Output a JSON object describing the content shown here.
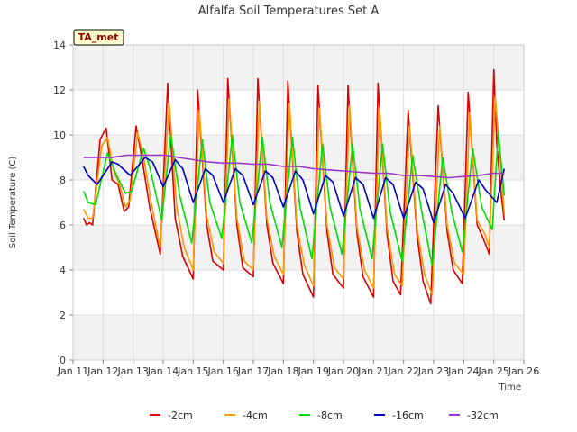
{
  "chart_data": {
    "type": "line",
    "title": "Alfalfa Soil Temperatures Set A",
    "xlabel": "Time",
    "ylabel": "Soil Temperature (C)",
    "xlim": [
      11,
      26
    ],
    "ylim": [
      0,
      14
    ],
    "xticks": [
      {
        "v": 11,
        "label": "Jan 11"
      },
      {
        "v": 12,
        "label": "Jan 12"
      },
      {
        "v": 13,
        "label": "Jan 13"
      },
      {
        "v": 14,
        "label": "Jan 14"
      },
      {
        "v": 15,
        "label": "Jan 15"
      },
      {
        "v": 16,
        "label": "Jan 16"
      },
      {
        "v": 17,
        "label": "Jan 17"
      },
      {
        "v": 18,
        "label": "Jan 18"
      },
      {
        "v": 19,
        "label": "Jan 19"
      },
      {
        "v": 20,
        "label": "Jan 20"
      },
      {
        "v": 21,
        "label": "Jan 21"
      },
      {
        "v": 22,
        "label": "Jan 22"
      },
      {
        "v": 23,
        "label": "Jan 23"
      },
      {
        "v": 24,
        "label": "Jan 24"
      },
      {
        "v": 25,
        "label": "Jan 25"
      },
      {
        "v": 26,
        "label": "Jan 26"
      }
    ],
    "yticks": [
      {
        "v": 0,
        "label": "0"
      },
      {
        "v": 2,
        "label": "2"
      },
      {
        "v": 4,
        "label": "4"
      },
      {
        "v": 6,
        "label": "6"
      },
      {
        "v": 8,
        "label": "8"
      },
      {
        "v": 10,
        "label": "10"
      },
      {
        "v": 12,
        "label": "12"
      },
      {
        "v": 14,
        "label": "14"
      }
    ],
    "grid": true,
    "legend_position": "bottom",
    "badge": "TA_met",
    "series": [
      {
        "name": "-2cm",
        "color": "#dd0000",
        "x": [
          11.35,
          11.45,
          11.55,
          11.65,
          11.9,
          12.1,
          12.3,
          12.5,
          12.7,
          12.85,
          13.1,
          13.3,
          13.55,
          13.9,
          14.15,
          14.4,
          14.65,
          15.0,
          15.15,
          15.45,
          15.65,
          16.0,
          16.15,
          16.45,
          16.65,
          17.0,
          17.15,
          17.45,
          17.65,
          18.0,
          18.15,
          18.45,
          18.65,
          19.0,
          19.15,
          19.45,
          19.65,
          20.0,
          20.15,
          20.45,
          20.65,
          21.0,
          21.15,
          21.45,
          21.65,
          21.9,
          22.15,
          22.45,
          22.65,
          22.9,
          23.15,
          23.45,
          23.65,
          23.95,
          24.15,
          24.45,
          24.65,
          24.85,
          25.0,
          25.1,
          25.25,
          25.35
        ],
        "y": [
          6.3,
          6.0,
          6.1,
          6.0,
          9.8,
          10.3,
          8.0,
          7.8,
          6.6,
          6.8,
          10.4,
          8.9,
          6.8,
          4.7,
          12.3,
          6.3,
          4.6,
          3.6,
          12.0,
          6.0,
          4.4,
          4.0,
          12.5,
          6.0,
          4.1,
          3.7,
          12.5,
          6.0,
          4.3,
          3.4,
          12.4,
          5.7,
          3.8,
          2.8,
          12.2,
          5.7,
          3.8,
          3.2,
          12.2,
          5.6,
          3.7,
          2.8,
          12.3,
          5.6,
          3.5,
          2.9,
          11.1,
          5.5,
          3.5,
          2.5,
          11.3,
          5.7,
          4.0,
          3.4,
          11.9,
          6.0,
          5.4,
          4.7,
          12.9,
          9.6,
          7.3,
          6.2
        ]
      },
      {
        "name": "-4cm",
        "color": "#ff9900",
        "x": [
          11.35,
          11.5,
          11.65,
          11.95,
          12.15,
          12.35,
          12.55,
          12.75,
          12.9,
          13.15,
          13.35,
          13.6,
          13.9,
          14.2,
          14.45,
          14.7,
          15.0,
          15.2,
          15.45,
          15.7,
          16.0,
          16.2,
          16.45,
          16.7,
          17.0,
          17.2,
          17.45,
          17.7,
          18.0,
          18.2,
          18.45,
          18.7,
          19.0,
          19.2,
          19.45,
          19.7,
          20.0,
          20.2,
          20.45,
          20.7,
          21.0,
          21.2,
          21.45,
          21.7,
          21.95,
          22.2,
          22.45,
          22.7,
          22.95,
          23.2,
          23.45,
          23.7,
          24.0,
          24.2,
          24.45,
          24.7,
          24.85,
          25.05,
          25.2,
          25.35
        ],
        "y": [
          6.7,
          6.3,
          6.3,
          9.5,
          9.9,
          8.4,
          7.8,
          6.8,
          7.1,
          10.1,
          9.0,
          7.0,
          5.0,
          11.4,
          6.8,
          5.0,
          4.0,
          11.1,
          6.4,
          4.8,
          4.3,
          11.6,
          6.3,
          4.4,
          4.0,
          11.5,
          6.3,
          4.6,
          3.8,
          11.4,
          6.0,
          4.2,
          3.3,
          11.2,
          6.0,
          4.1,
          3.6,
          11.3,
          5.9,
          4.0,
          3.2,
          11.2,
          5.9,
          3.8,
          3.3,
          10.4,
          5.8,
          3.8,
          2.9,
          10.4,
          6.0,
          4.3,
          3.8,
          11.0,
          6.2,
          5.6,
          5.0,
          11.7,
          9.2,
          6.5
        ]
      },
      {
        "name": "-8cm",
        "color": "#00dd00",
        "x": [
          11.35,
          11.5,
          11.75,
          12.15,
          12.45,
          12.75,
          12.95,
          13.35,
          13.55,
          13.95,
          14.25,
          14.55,
          14.95,
          15.3,
          15.55,
          15.95,
          16.3,
          16.55,
          16.95,
          17.3,
          17.55,
          17.95,
          18.3,
          18.55,
          18.95,
          19.3,
          19.55,
          19.95,
          20.3,
          20.55,
          20.95,
          21.3,
          21.55,
          21.95,
          22.3,
          22.6,
          22.95,
          23.3,
          23.6,
          23.95,
          24.3,
          24.6,
          24.95,
          25.15,
          25.35
        ],
        "y": [
          7.5,
          7.0,
          6.9,
          9.2,
          8.2,
          7.4,
          7.5,
          9.4,
          8.6,
          6.2,
          10.0,
          7.3,
          5.2,
          9.8,
          7.0,
          5.4,
          10.0,
          7.0,
          5.2,
          9.9,
          7.0,
          5.0,
          9.9,
          6.8,
          4.5,
          9.6,
          6.8,
          4.7,
          9.6,
          6.7,
          4.5,
          9.6,
          6.6,
          4.4,
          9.1,
          6.6,
          4.2,
          9.0,
          6.6,
          4.8,
          9.4,
          6.8,
          5.8,
          10.1,
          7.3
        ]
      },
      {
        "name": "-16cm",
        "color": "#0000cc",
        "x": [
          11.35,
          11.5,
          11.8,
          12.3,
          12.5,
          12.9,
          13.4,
          13.65,
          14.0,
          14.4,
          14.65,
          15.0,
          15.4,
          15.65,
          16.0,
          16.4,
          16.65,
          17.0,
          17.4,
          17.65,
          18.0,
          18.4,
          18.65,
          19.0,
          19.4,
          19.65,
          20.0,
          20.4,
          20.65,
          21.0,
          21.4,
          21.65,
          22.0,
          22.4,
          22.65,
          23.0,
          23.4,
          23.65,
          24.05,
          24.5,
          24.7,
          25.1,
          25.35
        ],
        "y": [
          8.6,
          8.2,
          7.8,
          8.8,
          8.7,
          8.2,
          9.0,
          8.8,
          7.7,
          8.9,
          8.5,
          7.0,
          8.5,
          8.2,
          7.0,
          8.5,
          8.2,
          6.9,
          8.4,
          8.1,
          6.8,
          8.4,
          8.0,
          6.5,
          8.2,
          7.9,
          6.4,
          8.1,
          7.8,
          6.3,
          8.1,
          7.8,
          6.3,
          7.9,
          7.6,
          6.1,
          7.8,
          7.4,
          6.3,
          8.0,
          7.6,
          7.0,
          8.5
        ]
      },
      {
        "name": "-32cm",
        "color": "#9933cc",
        "x": [
          11.35,
          11.8,
          12.3,
          12.8,
          13.3,
          13.7,
          14.1,
          14.5,
          15.0,
          15.5,
          16.0,
          16.5,
          17.0,
          17.5,
          18.0,
          18.5,
          19.0,
          19.5,
          20.0,
          20.5,
          21.0,
          21.5,
          22.0,
          22.5,
          23.0,
          23.5,
          24.0,
          24.5,
          25.0,
          25.35
        ],
        "y": [
          9.0,
          9.0,
          9.0,
          9.1,
          9.1,
          9.1,
          9.1,
          9.0,
          8.9,
          8.8,
          8.75,
          8.75,
          8.7,
          8.7,
          8.6,
          8.6,
          8.5,
          8.45,
          8.4,
          8.35,
          8.3,
          8.3,
          8.2,
          8.2,
          8.15,
          8.1,
          8.15,
          8.2,
          8.3,
          8.3
        ]
      }
    ]
  }
}
